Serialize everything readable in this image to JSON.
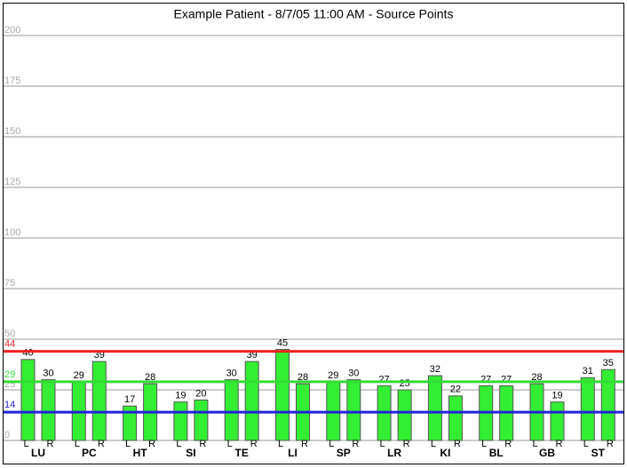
{
  "chart_data": {
    "type": "bar",
    "title": "Example Patient - 8/7/05 11:00 AM - Source Points",
    "categories": [
      "LU",
      "PC",
      "HT",
      "SI",
      "TE",
      "LI",
      "SP",
      "LR",
      "KI",
      "BL",
      "GB",
      "ST"
    ],
    "series": [
      {
        "name": "L",
        "color": "#33ee33",
        "values": [
          40,
          29,
          17,
          19,
          30,
          45,
          29,
          27,
          32,
          27,
          28,
          31
        ]
      },
      {
        "name": "R",
        "color": "#33ee33",
        "values": [
          30,
          39,
          28,
          20,
          39,
          28,
          30,
          25,
          22,
          27,
          19,
          35
        ]
      }
    ],
    "ylim": [
      0,
      200
    ],
    "yticks": [
      0,
      25,
      50,
      75,
      100,
      125,
      150,
      175,
      200
    ],
    "grid": true,
    "reference_lines": [
      {
        "value": 44,
        "color": "#ee2222"
      },
      {
        "value": 29,
        "color": "#33dd33"
      },
      {
        "value": 14,
        "color": "#2222dd"
      }
    ]
  }
}
